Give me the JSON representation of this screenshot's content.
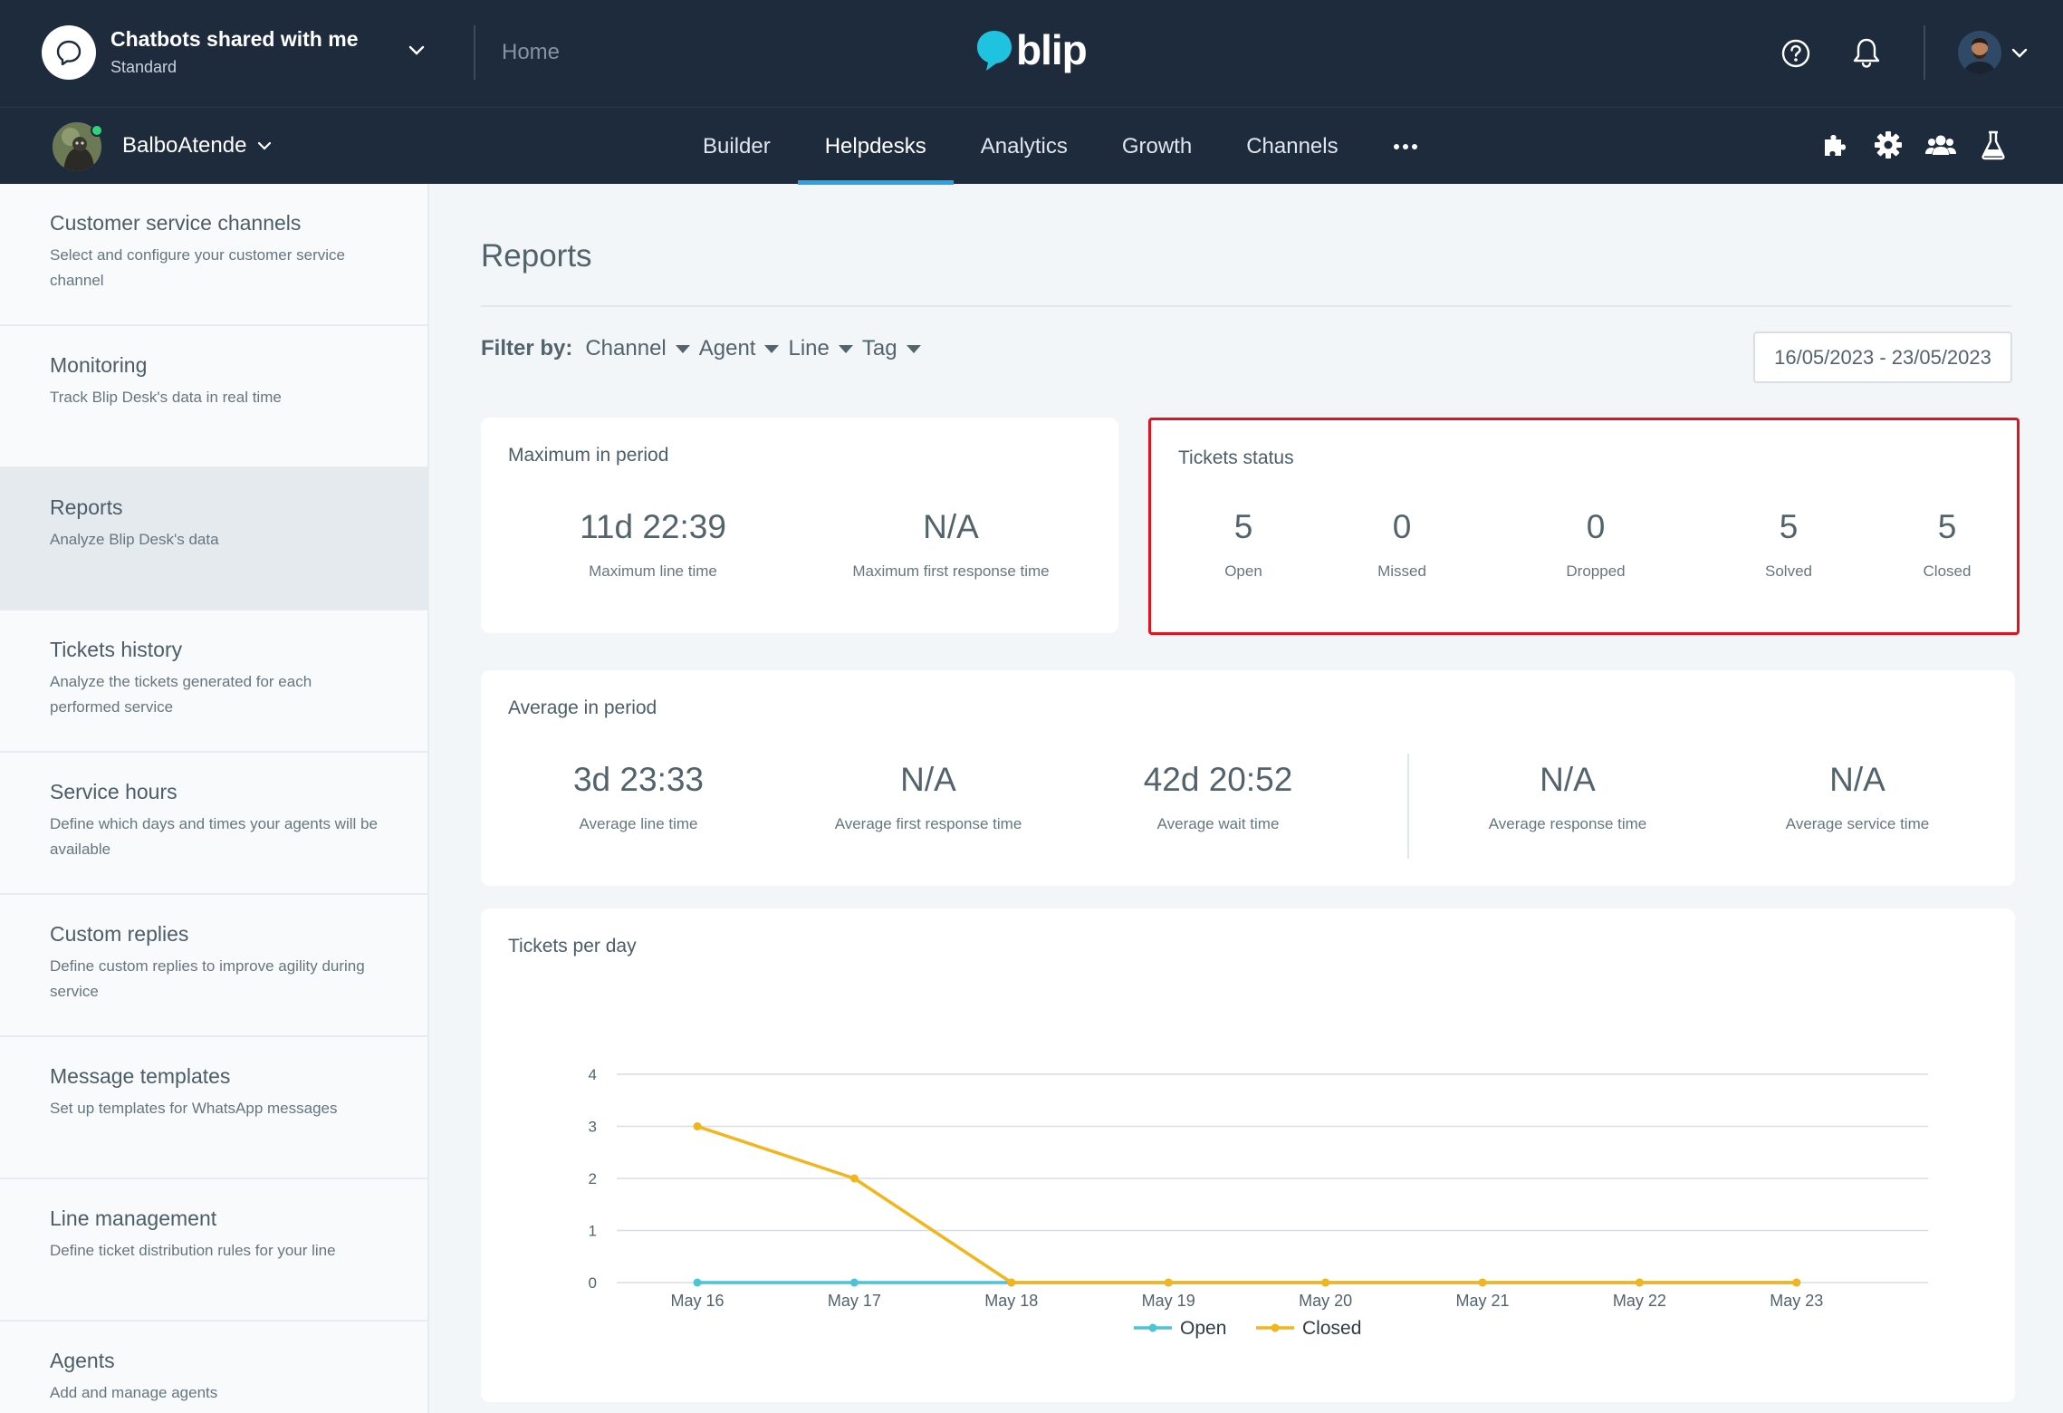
{
  "topbar": {
    "org_title": "Chatbots shared with me",
    "org_plan": "Standard",
    "home_label": "Home",
    "brand": "blip"
  },
  "navbar": {
    "bot_name": "BalboAtende",
    "tabs": [
      {
        "label": "Builder"
      },
      {
        "label": "Helpdesks",
        "active": true
      },
      {
        "label": "Analytics"
      },
      {
        "label": "Growth"
      },
      {
        "label": "Channels"
      }
    ],
    "icons": [
      "puzzle-icon",
      "gear-icon",
      "team-icon",
      "flask-icon"
    ]
  },
  "sidebar": {
    "items": [
      {
        "title": "Customer service channels",
        "desc": "Select and configure your customer service channel"
      },
      {
        "title": "Monitoring",
        "desc": "Track Blip Desk's data in real time"
      },
      {
        "title": "Reports",
        "desc": "Analyze Blip Desk's data",
        "active": true
      },
      {
        "title": "Tickets history",
        "desc": "Analyze the tickets generated for each performed service"
      },
      {
        "title": "Service hours",
        "desc": "Define which days and times your agents will be available"
      },
      {
        "title": "Custom replies",
        "desc": "Define custom replies to improve agility during service"
      },
      {
        "title": "Message templates",
        "desc": "Set up templates for WhatsApp messages"
      },
      {
        "title": "Line management",
        "desc": "Define ticket distribution rules for your line"
      },
      {
        "title": "Agents",
        "desc": "Add and manage agents"
      }
    ]
  },
  "main": {
    "title": "Reports",
    "filter": {
      "label": "Filter by:",
      "options": [
        "Channel",
        "Agent",
        "Line",
        "Tag"
      ]
    },
    "date_range": "16/05/2023 - 23/05/2023",
    "max_period": {
      "title": "Maximum in period",
      "metrics": [
        {
          "value": "11d 22:39",
          "label": "Maximum line time"
        },
        {
          "value": "N/A",
          "label": "Maximum first response time"
        }
      ]
    },
    "tickets_status": {
      "title": "Tickets status",
      "metrics": [
        {
          "value": "5",
          "label": "Open"
        },
        {
          "value": "0",
          "label": "Missed"
        },
        {
          "value": "0",
          "label": "Dropped"
        },
        {
          "value": "5",
          "label": "Solved"
        },
        {
          "value": "5",
          "label": "Closed"
        }
      ]
    },
    "avg_period": {
      "title": "Average in period",
      "metrics": [
        {
          "value": "3d 23:33",
          "label": "Average line time"
        },
        {
          "value": "N/A",
          "label": "Average first response time"
        },
        {
          "value": "42d 20:52",
          "label": "Average wait time"
        },
        {
          "value": "N/A",
          "label": "Average response time"
        },
        {
          "value": "N/A",
          "label": "Average service time"
        }
      ]
    },
    "chart_title": "Tickets per day"
  },
  "chart_data": {
    "type": "line",
    "title": "Tickets per day",
    "categories": [
      "May 16",
      "May 17",
      "May 18",
      "May 19",
      "May 20",
      "May 21",
      "May 22",
      "May 23"
    ],
    "ylim": [
      0,
      4
    ],
    "yticks": [
      0,
      1,
      2,
      3,
      4
    ],
    "grid": true,
    "legend": "bottom",
    "series": [
      {
        "name": "Open",
        "color": "#4dc3d6",
        "values": [
          0,
          0,
          0,
          0,
          0,
          0,
          0,
          0
        ]
      },
      {
        "name": "Closed",
        "color": "#f2b51c",
        "values": [
          3,
          2,
          0,
          0,
          0,
          0,
          0,
          0
        ]
      }
    ]
  },
  "colors": {
    "header_bg": "#1e2b3c",
    "accent": "#2aa3e6",
    "highlight_border": "#e0131f",
    "brand_bubble": "#1fc3e0"
  }
}
